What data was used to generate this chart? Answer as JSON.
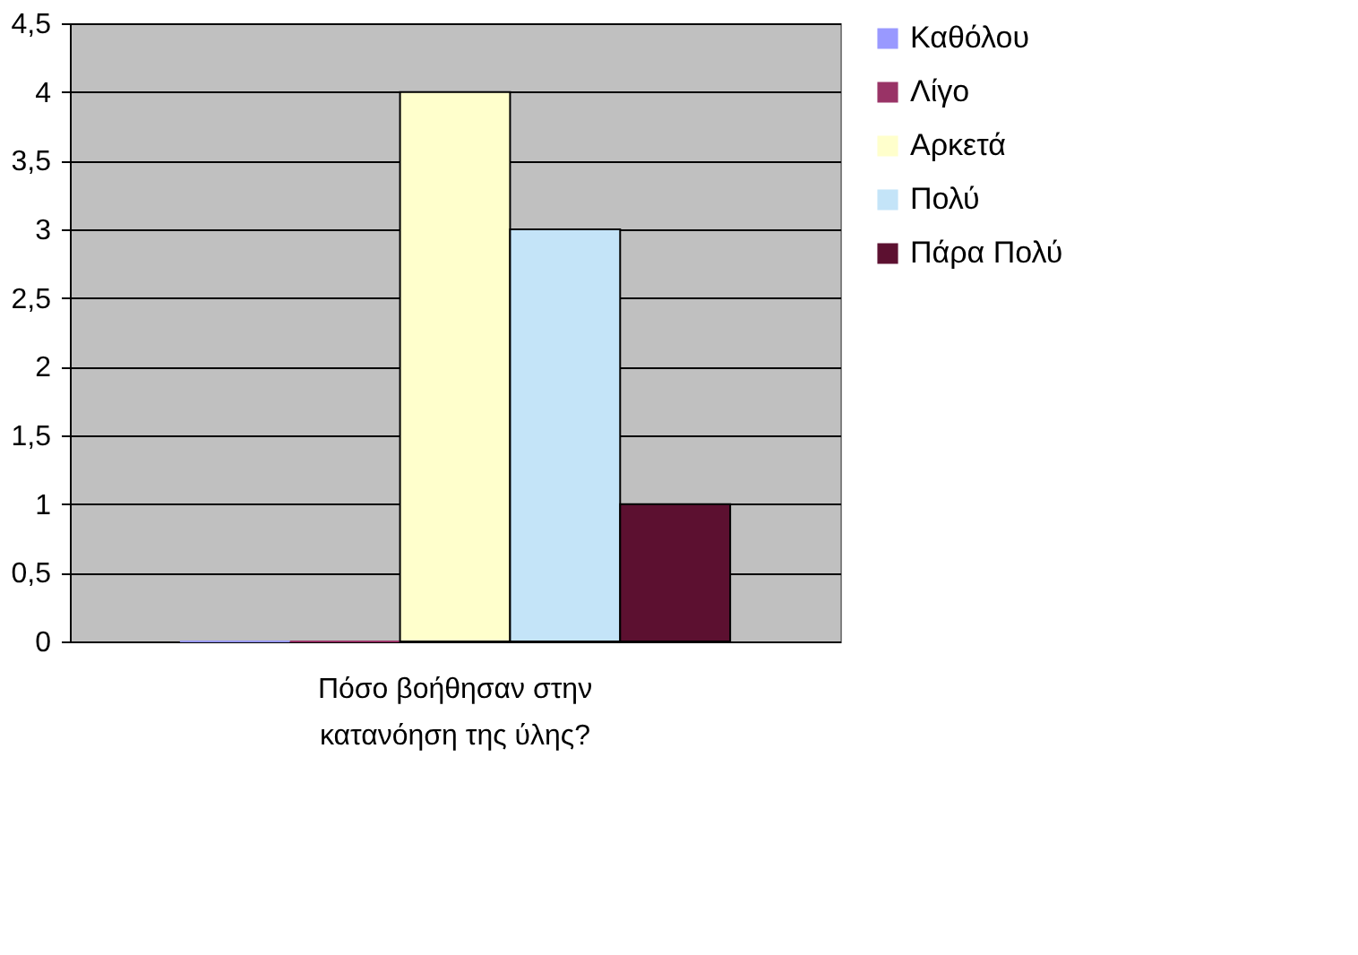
{
  "chart_data": {
    "type": "bar",
    "categories": [
      "Πόσο βοήθησαν στην κατανόηση της ύλης?"
    ],
    "series": [
      {
        "name": "Καθόλου",
        "color": "#9999ff",
        "values": [
          0
        ]
      },
      {
        "name": "Λίγο",
        "color": "#993366",
        "values": [
          0
        ]
      },
      {
        "name": "Αρκετά",
        "color": "#ffffcc",
        "values": [
          4
        ]
      },
      {
        "name": "Πολύ",
        "color": "#c4e4f8",
        "values": [
          3
        ]
      },
      {
        "name": "Πάρα Πολύ",
        "color": "#5c1030",
        "values": [
          1
        ]
      }
    ],
    "ylim": [
      0,
      4.5
    ],
    "yticks": [
      0,
      {
        "value": 0.5,
        "label": "0,5"
      },
      1,
      {
        "value": 1.5,
        "label": "1,5"
      },
      2,
      {
        "value": 2.5,
        "label": "2,5"
      },
      3,
      {
        "value": 3.5,
        "label": "3,5"
      },
      4,
      {
        "value": 4.5,
        "label": "4,5"
      }
    ],
    "grid": "y",
    "legend": "right"
  }
}
